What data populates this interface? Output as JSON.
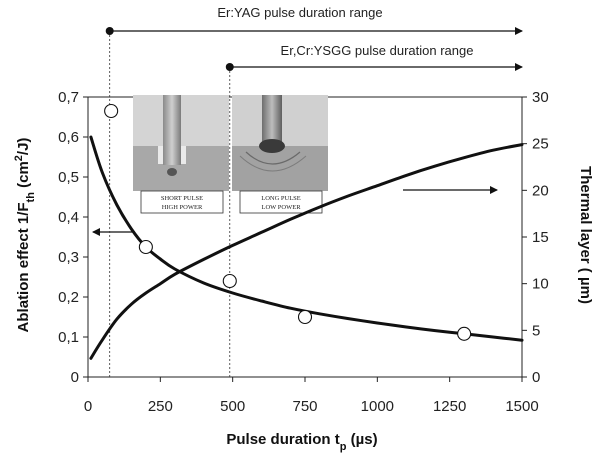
{
  "chart_data": {
    "type": "line",
    "xlabel": "Pulse duration t",
    "xlabel_sub": "p",
    "xlabel_unit": " (µs)",
    "ylabel_left": "Ablation effect 1/F",
    "ylabel_left_sub": "th",
    "ylabel_left_unit": " (cm",
    "ylabel_left_sup": "2",
    "ylabel_left_unit_end": "/J)",
    "ylabel_right": "Thermal layer ( µm)",
    "xlim": [
      0,
      1500
    ],
    "ylim_left": [
      0,
      0.7
    ],
    "ylim_right": [
      0,
      30
    ],
    "x_ticks": [
      "0",
      "250",
      "500",
      "750",
      "1000",
      "1250",
      "1500"
    ],
    "y_left_ticks": [
      "0",
      "0,1",
      "0,2",
      "0,3",
      "0,4",
      "0,5",
      "0,6",
      "0,7"
    ],
    "y_right_ticks": [
      "0",
      "5",
      "10",
      "15",
      "20",
      "25",
      "30"
    ],
    "series": [
      {
        "axis": "left",
        "style": "curve",
        "x": [
          10,
          50,
          100,
          150,
          200,
          250,
          300,
          400,
          500,
          600,
          700,
          800,
          900,
          1000,
          1100,
          1200,
          1300,
          1400,
          1500
        ],
        "y": [
          0.6,
          0.51,
          0.43,
          0.37,
          0.325,
          0.295,
          0.27,
          0.235,
          0.21,
          0.19,
          0.172,
          0.158,
          0.146,
          0.135,
          0.125,
          0.116,
          0.108,
          0.1,
          0.092
        ]
      },
      {
        "axis": "right",
        "style": "curve",
        "x": [
          10,
          50,
          100,
          150,
          200,
          250,
          300,
          400,
          500,
          600,
          700,
          800,
          900,
          1000,
          1100,
          1200,
          1300,
          1400,
          1500
        ],
        "y": [
          2.0,
          4.0,
          6.2,
          7.8,
          9.0,
          10.0,
          11.0,
          12.6,
          14.1,
          15.5,
          16.9,
          18.2,
          19.4,
          20.5,
          21.6,
          22.6,
          23.5,
          24.3,
          24.9
        ]
      },
      {
        "axis": "left",
        "style": "markers",
        "x": [
          80,
          200,
          490,
          750,
          1300
        ],
        "y": [
          0.665,
          0.325,
          0.24,
          0.15,
          0.108
        ]
      }
    ],
    "ranges": [
      {
        "label": "Er:YAG pulse duration range",
        "start": 75,
        "end": 1500
      },
      {
        "label": "Er,Cr:YSGG pulse duration range",
        "start": 490,
        "end": 1500
      }
    ],
    "insets": [
      {
        "caption_line1": "SHORT PULSE",
        "caption_line2": "HIGH POWER"
      },
      {
        "caption_line1": "LONG PULSE",
        "caption_line2": "LOW POWER"
      }
    ]
  }
}
